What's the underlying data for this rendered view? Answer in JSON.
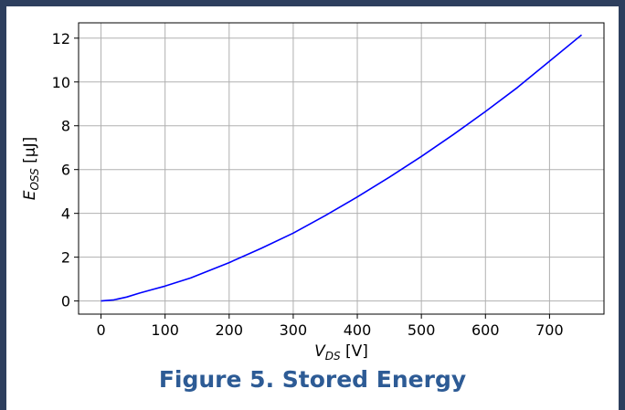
{
  "chart_data": {
    "type": "line",
    "xlabel": {
      "main": "V",
      "sub": "DS",
      "unit": " [V]"
    },
    "ylabel": {
      "main": "E",
      "sub": "OSS",
      "unit": " [µJ]"
    },
    "xlim": [
      -35,
      785
    ],
    "ylim": [
      -0.6,
      12.7
    ],
    "xticks": [
      0,
      100,
      200,
      300,
      400,
      500,
      600,
      700
    ],
    "yticks": [
      0,
      2,
      4,
      6,
      8,
      10,
      12
    ],
    "grid": true,
    "series": [
      {
        "color": "#0000ff",
        "x": [
          0,
          20,
          40,
          60,
          80,
          100,
          140,
          200,
          250,
          300,
          350,
          400,
          450,
          500,
          550,
          600,
          650,
          700,
          750
        ],
        "y": [
          0,
          0.05,
          0.18,
          0.36,
          0.52,
          0.68,
          1.05,
          1.75,
          2.4,
          3.1,
          3.9,
          4.75,
          5.65,
          6.6,
          7.6,
          8.65,
          9.75,
          10.95,
          12.15
        ]
      }
    ]
  },
  "caption": "Figure 5.  Stored Energy",
  "colors": {
    "frame": "#2d3f5e",
    "caption": "#2d5b95",
    "line": "#0000ff",
    "grid": "#b0b0b0"
  }
}
